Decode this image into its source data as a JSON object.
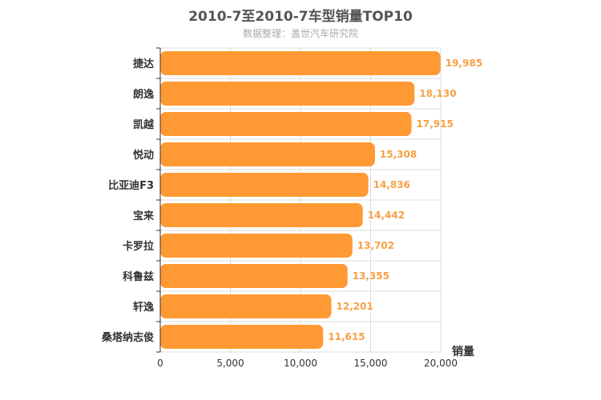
{
  "chart_data": {
    "type": "bar",
    "orientation": "horizontal",
    "title": "2010-7至2010-7车型销量TOP10",
    "subtitle": "数据整理：盖世汽车研究院",
    "categories": [
      "捷达",
      "朗逸",
      "凯越",
      "悦动",
      "比亚迪F3",
      "宝来",
      "卡罗拉",
      "科鲁兹",
      "轩逸",
      "桑塔纳志俊"
    ],
    "values": [
      19985,
      18130,
      17915,
      15308,
      14836,
      14442,
      13702,
      13355,
      12201,
      11615
    ],
    "value_labels": [
      "19,985",
      "18,130",
      "17,915",
      "15,308",
      "14,836",
      "14,442",
      "13,702",
      "13,355",
      "12,201",
      "11,615"
    ],
    "xlabel": "销量",
    "xlim": [
      0,
      20000
    ],
    "x_ticks": [
      0,
      5000,
      10000,
      15000,
      20000
    ],
    "x_tick_labels": [
      "0",
      "5,000",
      "10,000",
      "15,000",
      "20,000"
    ],
    "grid": true,
    "bar_color": "#ff9933",
    "value_label_color": "#f7a045"
  }
}
